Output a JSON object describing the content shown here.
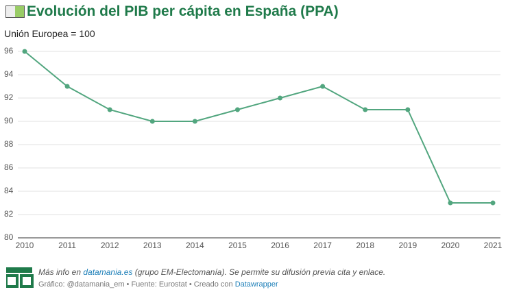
{
  "chart_data": {
    "type": "line",
    "title": "Evolución del PIB per cápita en España (PPA)",
    "subtitle": "Unión Europea = 100",
    "x": [
      2010,
      2011,
      2012,
      2013,
      2014,
      2015,
      2016,
      2017,
      2018,
      2019,
      2020,
      2021
    ],
    "values": [
      96,
      93,
      91,
      90,
      90,
      91,
      92,
      93,
      91,
      91,
      83,
      83
    ],
    "color": "#52a67f",
    "xlim": [
      2010,
      2021
    ],
    "ylim": [
      80,
      96
    ],
    "yticks": [
      80,
      82,
      84,
      86,
      88,
      90,
      92,
      94,
      96
    ],
    "grid": true
  },
  "footer": {
    "info_pre": "Más info en ",
    "info_link": "datamania.es",
    "info_post": " (grupo EM-Electomanía). Se permite su difusión previa cita y enlace.",
    "credit": "Gráfico: @datamania_em • Fuente: Eurostat • Creado con ",
    "credit_link": "Datawrapper"
  }
}
